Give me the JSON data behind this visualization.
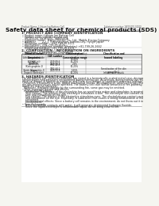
{
  "title": "Safety data sheet for chemical products (SDS)",
  "header_left": "Product Name: Lithium Ion Battery Cell",
  "header_right": "Substance number: 1W10-001-00010\nEstablishment / Revision: Dec.7.2010",
  "bg_color": "#f5f5f0",
  "content_bg": "#ffffff",
  "text_color": "#222222",
  "header_color": "#444444",
  "title_size": 5.2,
  "body_size": 2.3,
  "section_size": 3.0,
  "small_size": 2.0,
  "table_header_bg": "#dddddd",
  "table_alt_bg": "#f2f2f2"
}
